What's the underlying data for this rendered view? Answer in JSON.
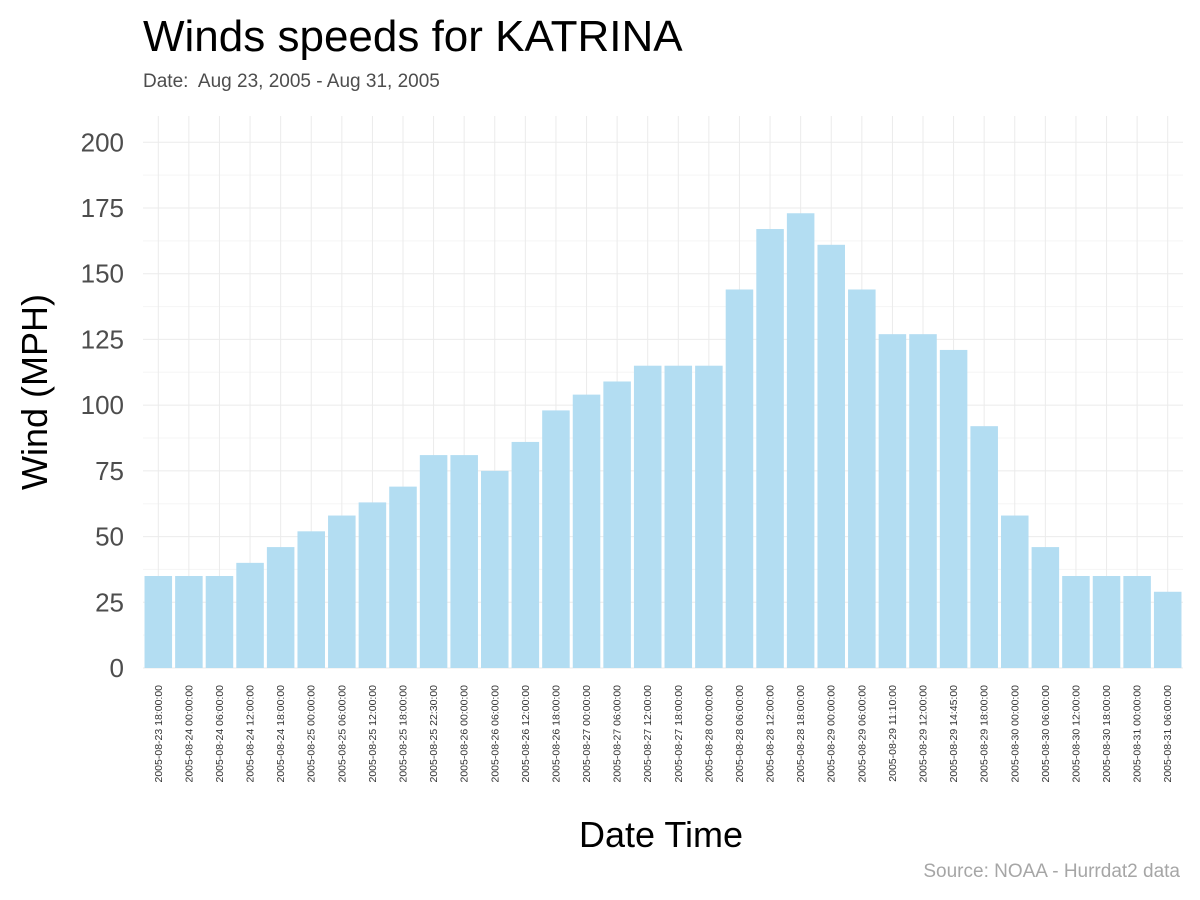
{
  "chart_data": {
    "type": "bar",
    "title": "Winds speeds for KATRINA",
    "subtitle": "Date:  Aug 23, 2005 - Aug 31, 2005",
    "caption": "Source: NOAA - Hurrdat2 data",
    "xlabel": "Date Time",
    "ylabel": "Wind (MPH)",
    "ylim": [
      0,
      210
    ],
    "yticks": [
      0,
      25,
      50,
      75,
      100,
      125,
      150,
      175,
      200
    ],
    "grid": true,
    "bar_color": "#b3ddf2",
    "categories": [
      "2005-08-23 18:00:00",
      "2005-08-24 00:00:00",
      "2005-08-24 06:00:00",
      "2005-08-24 12:00:00",
      "2005-08-24 18:00:00",
      "2005-08-25 00:00:00",
      "2005-08-25 06:00:00",
      "2005-08-25 12:00:00",
      "2005-08-25 18:00:00",
      "2005-08-25 22:30:00",
      "2005-08-26 00:00:00",
      "2005-08-26 06:00:00",
      "2005-08-26 12:00:00",
      "2005-08-26 18:00:00",
      "2005-08-27 00:00:00",
      "2005-08-27 06:00:00",
      "2005-08-27 12:00:00",
      "2005-08-27 18:00:00",
      "2005-08-28 00:00:00",
      "2005-08-28 06:00:00",
      "2005-08-28 12:00:00",
      "2005-08-28 18:00:00",
      "2005-08-29 00:00:00",
      "2005-08-29 06:00:00",
      "2005-08-29 11:10:00",
      "2005-08-29 12:00:00",
      "2005-08-29 14:45:00",
      "2005-08-29 18:00:00",
      "2005-08-30 00:00:00",
      "2005-08-30 06:00:00",
      "2005-08-30 12:00:00",
      "2005-08-30 18:00:00",
      "2005-08-31 00:00:00",
      "2005-08-31 06:00:00"
    ],
    "values": [
      35,
      35,
      35,
      40,
      46,
      52,
      58,
      63,
      69,
      81,
      81,
      75,
      86,
      98,
      104,
      109,
      115,
      115,
      115,
      144,
      167,
      173,
      161,
      144,
      127,
      127,
      121,
      92,
      58,
      46,
      35,
      35,
      35,
      29
    ]
  }
}
